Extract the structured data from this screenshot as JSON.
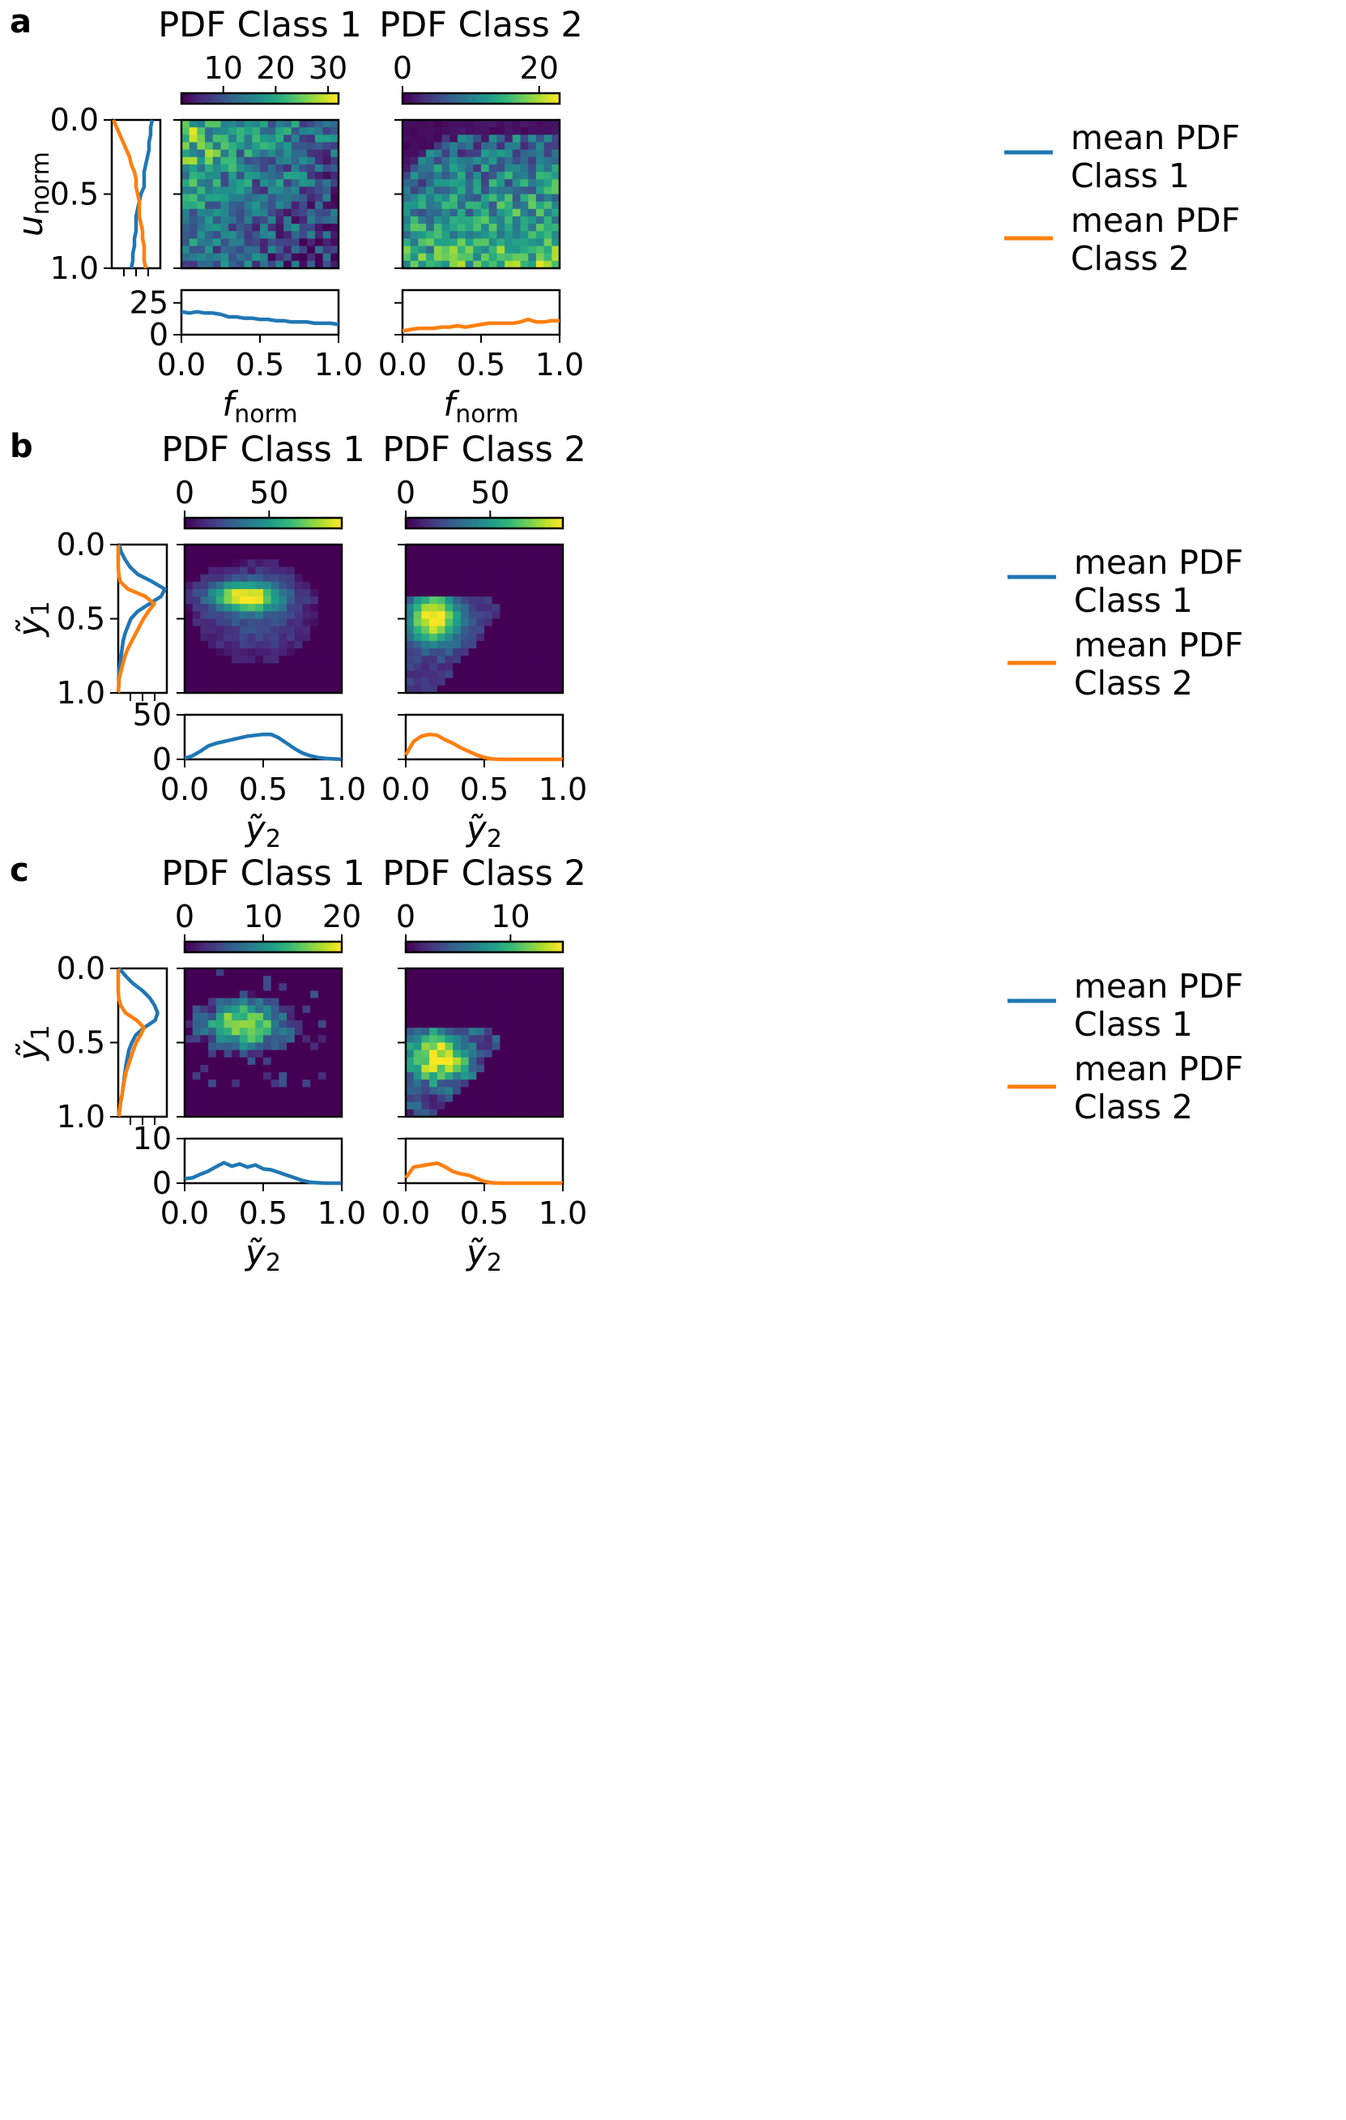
{
  "colors": {
    "class1": "#1f77b4",
    "class2": "#ff7f0e",
    "viridis": [
      "#440154",
      "#482878",
      "#3e4989",
      "#31688e",
      "#26828e",
      "#1f9e89",
      "#35b779",
      "#6ece58",
      "#b5de2b",
      "#fde725"
    ]
  },
  "legend": {
    "class1_line1": "mean PDF",
    "class1_line2": "Class 1",
    "class2_line1": "mean PDF",
    "class2_line2": "Class 2"
  },
  "chart_data": [
    {
      "type": "heatmap",
      "panel_label": "a",
      "titles": [
        "PDF Class 1",
        "PDF Class 2"
      ],
      "ylabel": "u_norm",
      "xlabel": "f_norm",
      "ylim": [
        1.0,
        0.0
      ],
      "xlim": [
        0.0,
        1.0
      ],
      "yticks": [
        "0.0",
        "0.5",
        "1.0"
      ],
      "xticks": [
        "0.0",
        "0.5",
        "1.0"
      ],
      "colorbars": [
        {
          "min": 2,
          "max": 32,
          "ticks": [
            10,
            20,
            30
          ]
        },
        {
          "min": 0,
          "max": 23,
          "ticks": [
            0,
            20
          ]
        }
      ],
      "marginal_x": {
        "ylim": [
          0,
          35
        ],
        "yticks": [
          "0",
          "25"
        ],
        "x": [
          0.0,
          0.05,
          0.1,
          0.15,
          0.2,
          0.25,
          0.3,
          0.35,
          0.4,
          0.45,
          0.5,
          0.55,
          0.6,
          0.65,
          0.7,
          0.75,
          0.8,
          0.85,
          0.9,
          0.95,
          1.0
        ],
        "class1": [
          18,
          17,
          18,
          17,
          17,
          16,
          14,
          14,
          13,
          13,
          12,
          12,
          11,
          11,
          10,
          10,
          10,
          9,
          9,
          9,
          8
        ],
        "class2": [
          3,
          4,
          5,
          5,
          5,
          6,
          6,
          7,
          6,
          7,
          8,
          9,
          9,
          9,
          9,
          10,
          12,
          10,
          10,
          11,
          11
        ]
      },
      "marginal_y": {
        "xlim": [
          0,
          30
        ],
        "x": [
          0.0,
          0.05,
          0.1,
          0.15,
          0.2,
          0.25,
          0.3,
          0.35,
          0.4,
          0.45,
          0.5,
          0.55,
          0.6,
          0.65,
          0.7,
          0.75,
          0.8,
          0.85,
          0.9,
          0.95,
          1.0
        ],
        "class1": [
          25,
          24,
          24,
          23,
          23,
          22,
          21,
          20,
          20,
          20,
          18,
          17,
          16,
          15,
          15,
          15,
          14,
          14,
          13,
          13,
          12
        ],
        "class2": [
          1,
          3,
          5,
          7,
          9,
          11,
          12,
          14,
          15,
          15,
          16,
          17,
          17,
          17,
          18,
          19,
          19,
          20,
          20,
          20,
          21
        ]
      },
      "heatmap": {
        "model": "a"
      }
    },
    {
      "type": "heatmap",
      "panel_label": "b",
      "titles": [
        "PDF Class 1",
        "PDF Class 2"
      ],
      "ylabel": "y1",
      "xlabel": "y2",
      "ylim": [
        1.0,
        0.0
      ],
      "xlim": [
        0.0,
        1.0
      ],
      "yticks": [
        "0.0",
        "0.5",
        "1.0"
      ],
      "xticks": [
        "0.0",
        "0.5",
        "1.0"
      ],
      "colorbars": [
        {
          "min": 0,
          "max": 93,
          "ticks": [
            0,
            50
          ]
        },
        {
          "min": 0,
          "max": 93,
          "ticks": [
            0,
            50
          ]
        }
      ],
      "marginal_x": {
        "ylim": [
          0,
          50
        ],
        "yticks": [
          "0",
          "50"
        ],
        "x": [
          0.0,
          0.05,
          0.1,
          0.15,
          0.2,
          0.25,
          0.3,
          0.35,
          0.4,
          0.45,
          0.5,
          0.55,
          0.6,
          0.65,
          0.7,
          0.75,
          0.8,
          0.85,
          0.9,
          0.95,
          1.0
        ],
        "class1": [
          1,
          4,
          9,
          15,
          18,
          20,
          22,
          24,
          26,
          27,
          28,
          28,
          24,
          18,
          12,
          7,
          4,
          2,
          1,
          0.5,
          0
        ],
        "class2": [
          5,
          20,
          26,
          28,
          27,
          22,
          18,
          13,
          9,
          5,
          2,
          0.5,
          0,
          0,
          0,
          0,
          0,
          0,
          0,
          0,
          0
        ]
      },
      "marginal_y": {
        "xlim": [
          0,
          50
        ],
        "x": [
          0.0,
          0.05,
          0.1,
          0.15,
          0.2,
          0.25,
          0.3,
          0.35,
          0.4,
          0.45,
          0.5,
          0.55,
          0.6,
          0.65,
          0.7,
          0.75,
          0.8,
          0.85,
          0.9,
          0.95,
          1.0
        ],
        "class1": [
          1,
          3,
          7,
          12,
          20,
          35,
          48,
          44,
          32,
          20,
          13,
          10,
          7,
          5,
          4,
          3,
          2,
          1,
          0.5,
          0.5,
          0
        ],
        "class2": [
          0,
          0,
          0,
          0,
          0.5,
          2,
          10,
          28,
          37,
          31,
          26,
          22,
          18,
          14,
          10,
          7,
          5,
          3,
          1,
          0.5,
          0
        ]
      },
      "heatmap": {
        "model": "b"
      }
    },
    {
      "type": "heatmap",
      "panel_label": "c",
      "titles": [
        "PDF Class 1",
        "PDF Class 2"
      ],
      "ylabel": "y1",
      "xlabel": "y2",
      "ylim": [
        1.0,
        0.0
      ],
      "xlim": [
        0.0,
        1.0
      ],
      "yticks": [
        "0.0",
        "0.5",
        "1.0"
      ],
      "xticks": [
        "0.0",
        "0.5",
        "1.0"
      ],
      "colorbars": [
        {
          "min": 0,
          "max": 20,
          "ticks": [
            0,
            10,
            20
          ]
        },
        {
          "min": 0,
          "max": 15,
          "ticks": [
            0,
            10
          ]
        }
      ],
      "marginal_x": {
        "ylim": [
          0,
          10
        ],
        "yticks": [
          "0",
          "10"
        ],
        "x": [
          0.0,
          0.05,
          0.1,
          0.15,
          0.2,
          0.25,
          0.3,
          0.35,
          0.4,
          0.45,
          0.5,
          0.55,
          0.6,
          0.65,
          0.7,
          0.75,
          0.8,
          0.85,
          0.9,
          0.95,
          1.0
        ],
        "class1": [
          1,
          1.2,
          2,
          2.7,
          3.7,
          4.6,
          3.8,
          4.3,
          3.6,
          4.1,
          3.2,
          3,
          2.4,
          1.8,
          1.2,
          0.6,
          0.2,
          0.1,
          0,
          0,
          0
        ],
        "class2": [
          1.2,
          3.6,
          3.9,
          4.2,
          4.5,
          3.7,
          2.6,
          2.1,
          1.8,
          1.1,
          0.4,
          0.1,
          0,
          0,
          0,
          0,
          0,
          0,
          0,
          0,
          0
        ]
      },
      "marginal_y": {
        "xlim": [
          0,
          10
        ],
        "x": [
          0.0,
          0.05,
          0.1,
          0.15,
          0.2,
          0.25,
          0.3,
          0.35,
          0.4,
          0.45,
          0.5,
          0.55,
          0.6,
          0.65,
          0.7,
          0.75,
          0.8,
          0.85,
          0.9,
          0.95,
          1.0
        ],
        "class1": [
          0.2,
          1.5,
          3,
          5,
          6.5,
          7.5,
          8.1,
          7.6,
          5.3,
          3.6,
          2.8,
          2.2,
          1.9,
          1.6,
          1.4,
          1.2,
          1,
          0.8,
          0.5,
          0.3,
          0.1
        ],
        "class2": [
          0,
          0,
          0,
          0,
          0.1,
          0.5,
          1.5,
          3.8,
          5.3,
          4.6,
          3.7,
          3.1,
          2.6,
          2.1,
          1.6,
          1.3,
          1,
          0.8,
          0.5,
          0.3,
          0.1
        ]
      },
      "heatmap": {
        "model": "c"
      }
    }
  ]
}
